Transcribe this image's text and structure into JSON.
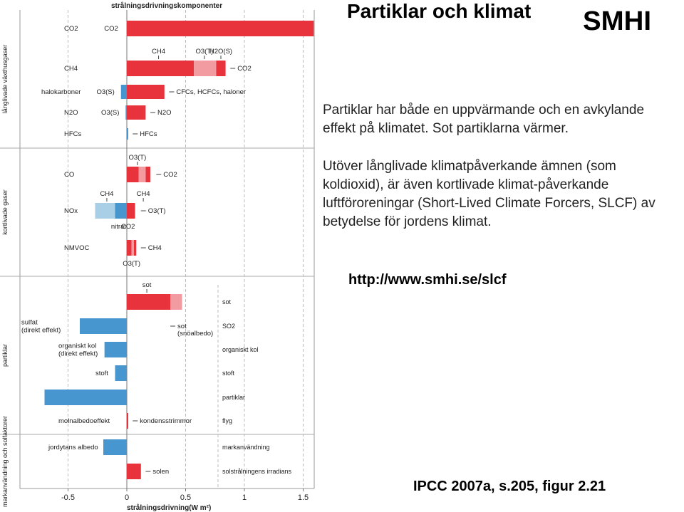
{
  "slide": {
    "title": "Partiklar och klimat",
    "logo_text": "SMHI",
    "paragraph1": "Partiklar har både en uppvärmande och en avkylande effekt på klimatet. Sot partiklarna värmer.",
    "paragraph2": "Utöver långlivade klimatpåverkande ämnen (som koldioxid), är även kortlivade klimat-påverkande luftföroreningar (Short-Lived Climate Forcers, SLCF) av betydelse för jordens klimat.",
    "url": "http://www.smhi.se/slcf",
    "reference": "IPCC 2007a, s.205, figur 2.21"
  },
  "chart_data": {
    "type": "bar",
    "orientation": "horizontal",
    "stacked": true,
    "title": "strålningsdrivningskomponenter",
    "xlabel": "strålningsdrivning(W m²)",
    "x_ticks": [
      "-0.5",
      "0",
      "0.5",
      "1",
      "1.5"
    ],
    "xlim": [
      -0.7,
      1.6
    ],
    "colors": {
      "warming": "#e8323c",
      "warming_light": "#f29ca2",
      "cooling": "#4896d0",
      "cooling_light": "#a9cfe6"
    },
    "groups": [
      {
        "label": "långlivade växthusgaser",
        "rows": [
          0,
          1,
          2,
          3,
          4
        ]
      },
      {
        "label": "kortlivade gaser",
        "rows": [
          5,
          6,
          7
        ]
      },
      {
        "label": "partiklar",
        "rows": [
          8,
          9,
          10,
          11,
          12,
          13
        ]
      },
      {
        "label": "markanvändning och solfaktorer",
        "rows": [
          14,
          15
        ]
      }
    ],
    "rows": [
      {
        "label": "CO2",
        "right": "",
        "segments": [
          {
            "from": 0,
            "to": 1.59,
            "color": "warming"
          }
        ],
        "annotations": [
          {
            "text": "CO2",
            "x": -0.05,
            "pos": "left"
          }
        ]
      },
      {
        "label": "CH4",
        "right": "",
        "segments": [
          {
            "from": 0,
            "to": 0.57,
            "color": "warming"
          },
          {
            "from": 0.57,
            "to": 0.76,
            "color": "warming_light"
          },
          {
            "from": 0.76,
            "to": 0.84,
            "color": "warming"
          }
        ],
        "annotations": [
          {
            "text": "CH4",
            "x": 0.27,
            "pos": "above"
          },
          {
            "text": "O3(T)",
            "x": 0.66,
            "pos": "above"
          },
          {
            "text": "H2O(S)",
            "x": 0.8,
            "pos": "above"
          },
          {
            "text": "CO2",
            "x": 0.88,
            "pos": "right"
          }
        ]
      },
      {
        "label": "halokarboner",
        "right": "",
        "segments": [
          {
            "from": -0.05,
            "to": 0,
            "color": "cooling"
          },
          {
            "from": 0,
            "to": 0.32,
            "color": "warming"
          }
        ],
        "annotations": [
          {
            "text": "O3(S)",
            "x": -0.08,
            "pos": "left"
          },
          {
            "text": "CFCs, HCFCs, haloner",
            "x": 0.36,
            "pos": "right"
          }
        ]
      },
      {
        "label": "N2O",
        "right": "",
        "segments": [
          {
            "from": -0.01,
            "to": 0,
            "color": "cooling"
          },
          {
            "from": 0,
            "to": 0.16,
            "color": "warming"
          }
        ],
        "annotations": [
          {
            "text": "O3(S)",
            "x": -0.04,
            "pos": "left"
          },
          {
            "text": "N2O",
            "x": 0.2,
            "pos": "right"
          }
        ]
      },
      {
        "label": "HFCs",
        "right": "",
        "segments": [
          {
            "from": 0,
            "to": 0.01,
            "color": "cooling"
          }
        ],
        "annotations": [
          {
            "text": "HFCs",
            "x": 0.05,
            "pos": "right"
          }
        ]
      },
      {
        "label": "CO",
        "right": "",
        "segments": [
          {
            "from": 0,
            "to": 0.1,
            "color": "warming"
          },
          {
            "from": 0.1,
            "to": 0.16,
            "color": "warming_light"
          },
          {
            "from": 0.16,
            "to": 0.2,
            "color": "warming"
          }
        ],
        "annotations": [
          {
            "text": "O3(T)",
            "x": 0.09,
            "pos": "above"
          },
          {
            "text": "CO2",
            "x": 0.25,
            "pos": "right"
          }
        ]
      },
      {
        "label": "NOx",
        "right": "",
        "segments": [
          {
            "from": -0.27,
            "to": -0.1,
            "color": "cooling_light"
          },
          {
            "from": -0.1,
            "to": 0,
            "color": "cooling"
          },
          {
            "from": 0,
            "to": 0.07,
            "color": "warming"
          }
        ],
        "annotations": [
          {
            "text": "CH4",
            "x": -0.17,
            "pos": "above"
          },
          {
            "text": "CH4",
            "x": 0.14,
            "pos": "above"
          },
          {
            "text": "O3(T)",
            "x": 0.12,
            "pos": "right"
          },
          {
            "text": "nitrat",
            "x": -0.07,
            "pos": "below"
          },
          {
            "text": "CO2",
            "x": 0.01,
            "pos": "below"
          }
        ]
      },
      {
        "label": "NMVOC",
        "right": "",
        "segments": [
          {
            "from": 0,
            "to": 0.04,
            "color": "warming"
          },
          {
            "from": 0.04,
            "to": 0.06,
            "color": "warming_light"
          },
          {
            "from": 0.06,
            "to": 0.08,
            "color": "warming"
          }
        ],
        "annotations": [
          {
            "text": "CH4",
            "x": 0.12,
            "pos": "right"
          },
          {
            "text": "O3(T)",
            "x": 0.04,
            "pos": "below"
          }
        ]
      },
      {
        "label": "",
        "right": "sot",
        "segments": [
          {
            "from": 0,
            "to": 0.37,
            "color": "warming"
          },
          {
            "from": 0.37,
            "to": 0.47,
            "color": "warming_light"
          }
        ],
        "annotations": [
          {
            "text": "sot",
            "x": 0.17,
            "pos": "above"
          }
        ]
      },
      {
        "label": "sulfat (direkt effekt)",
        "right": "SO2",
        "segments": [
          {
            "from": -0.4,
            "to": 0,
            "color": "cooling"
          }
        ],
        "annotations": [
          {
            "text": "sot (snöalbedo)",
            "x": 0.37,
            "pos": "right"
          }
        ]
      },
      {
        "label": "organiskt kol (direkt effekt)",
        "right": "organiskt kol",
        "segments": [
          {
            "from": -0.19,
            "to": 0,
            "color": "cooling"
          }
        ],
        "annotations": []
      },
      {
        "label": "stoft",
        "right": "stoft",
        "segments": [
          {
            "from": -0.1,
            "to": 0,
            "color": "cooling"
          }
        ],
        "annotations": []
      },
      {
        "label": "",
        "right": "partiklar",
        "segments": [
          {
            "from": -0.7,
            "to": 0,
            "color": "cooling"
          }
        ],
        "annotations": []
      },
      {
        "label": "molnalbedoeffekt",
        "right": "flyg",
        "segments": [
          {
            "from": 0,
            "to": 0.01,
            "color": "warming"
          }
        ],
        "annotations": [
          {
            "text": "kondensstrimmor",
            "x": 0.05,
            "pos": "right"
          }
        ]
      },
      {
        "label": "jordytans albedo",
        "right": "markanvändning",
        "segments": [
          {
            "from": -0.2,
            "to": 0,
            "color": "cooling"
          }
        ],
        "annotations": []
      },
      {
        "label": "",
        "right": "solstrålningens irradians",
        "segments": [
          {
            "from": 0,
            "to": 0.12,
            "color": "warming"
          }
        ],
        "annotations": [
          {
            "text": "solen",
            "x": 0.16,
            "pos": "right"
          }
        ]
      }
    ]
  }
}
